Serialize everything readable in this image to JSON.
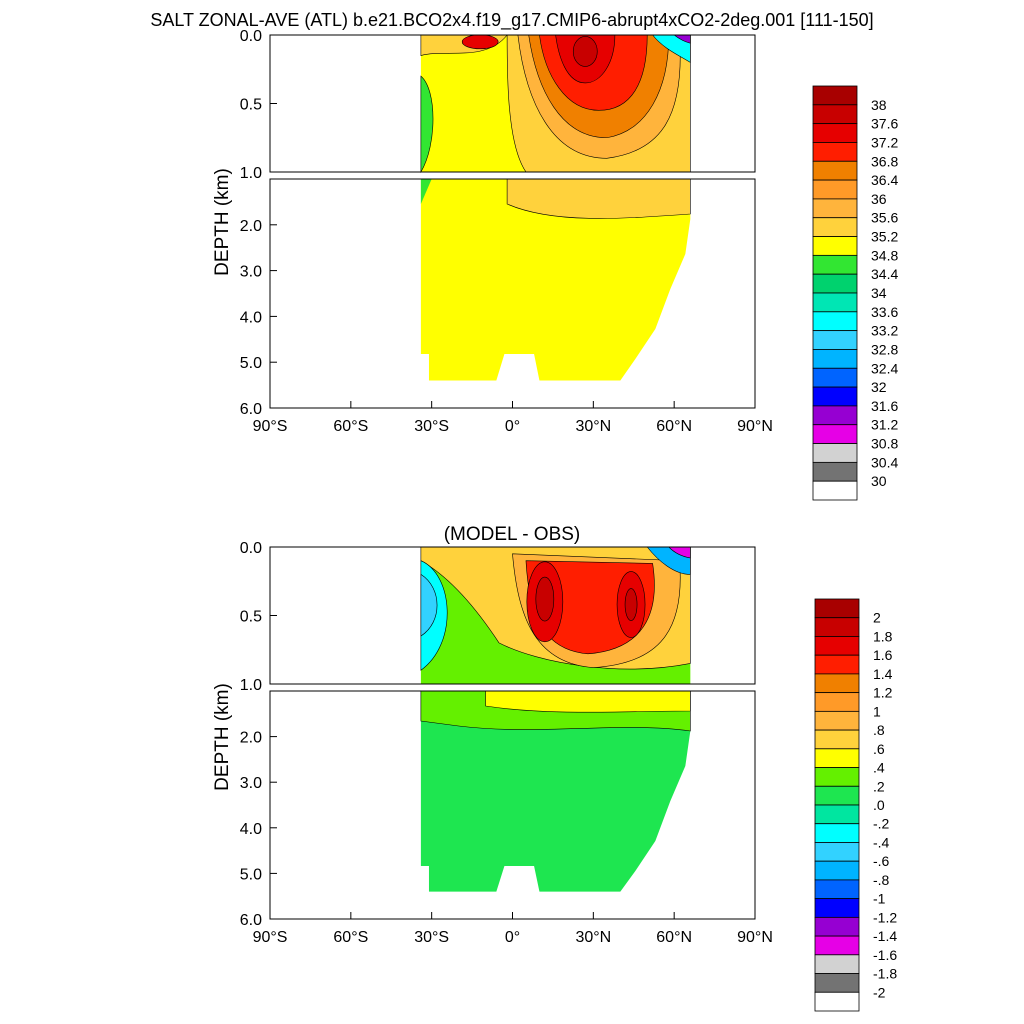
{
  "chart_data": [
    {
      "type": "heatmap",
      "title": "SALT ZONAL-AVE (ATL) b.e21.BCO2x4.f19_g17.CMIP6-abrupt4xCO2-2deg.001 [111-150]",
      "ylabel": "DEPTH (km)",
      "xlabel": "",
      "xlim": [
        -90,
        90
      ],
      "x_ticks": [
        -90,
        -60,
        -30,
        0,
        30,
        60,
        90
      ],
      "x_tick_labels": [
        "90°S",
        "60°S",
        "30°S",
        "0°",
        "30°N",
        "60°N",
        "90°N"
      ],
      "ylim_upper": [
        0.0,
        1.0
      ],
      "ylim_lower": [
        1.0,
        6.0
      ],
      "y_tick_labels_upper": [
        "0.0",
        "0.5",
        "1.0"
      ],
      "y_tick_labels_lower": [
        "2.0",
        "3.0",
        "4.0",
        "5.0",
        "6.0"
      ],
      "legend_position": "right",
      "colorbar_labels": [
        "38",
        "37.6",
        "37.2",
        "36.8",
        "36.4",
        "36",
        "35.6",
        "35.2",
        "34.8",
        "34.4",
        "34",
        "33.6",
        "33.2",
        "32.8",
        "32.4",
        "32",
        "31.6",
        "31.2",
        "30.8",
        "30.4",
        "30"
      ],
      "colorbar_colors": [
        "#a80000",
        "#c80000",
        "#e60000",
        "#ff1e00",
        "#f08000",
        "#ff9a28",
        "#ffb43c",
        "#ffd23c",
        "#ffff00",
        "#32e632",
        "#00d26e",
        "#00e6b4",
        "#00ffff",
        "#32d2ff",
        "#00b4ff",
        "#0064ff",
        "#0000ff",
        "#9600d2",
        "#e600e6",
        "#d2d2d2",
        "#737373",
        "#ffffff"
      ],
      "domain_extent": {
        "lat_min": -34,
        "lat_max": 66,
        "max_depth_km": 5.4
      },
      "field_level_bins": {
        "background_below_1km": 8,
        "north_band_below_1km": 7,
        "southern_fresh_lens": 9,
        "upper_warm_band": 7,
        "subtropical_core_outer": 6,
        "subtropical_core_mid": 4,
        "subtropical_core_inner": 3,
        "subtropical_core_center": 2,
        "subtropical_core_peak": 1,
        "equatorial_surface_max": 2,
        "arctic_fresh_outer": 12,
        "arctic_fresh_inner": 17
      }
    },
    {
      "type": "heatmap",
      "title": "(MODEL - OBS)",
      "ylabel": "DEPTH (km)",
      "xlabel": "",
      "xlim": [
        -90,
        90
      ],
      "x_ticks": [
        -90,
        -60,
        -30,
        0,
        30,
        60,
        90
      ],
      "x_tick_labels": [
        "90°S",
        "60°S",
        "30°S",
        "0°",
        "30°N",
        "60°N",
        "90°N"
      ],
      "ylim_upper": [
        0.0,
        1.0
      ],
      "ylim_lower": [
        1.0,
        6.0
      ],
      "y_tick_labels_upper": [
        "0.0",
        "0.5",
        "1.0"
      ],
      "y_tick_labels_lower": [
        "2.0",
        "3.0",
        "4.0",
        "5.0",
        "6.0"
      ],
      "legend_position": "right",
      "colorbar_labels": [
        "2",
        "1.8",
        "1.6",
        "1.4",
        "1.2",
        "1",
        ".8",
        ".6",
        ".4",
        ".2",
        ".0",
        "-.2",
        "-.4",
        "-.6",
        "-.8",
        "-1",
        "-1.2",
        "-1.4",
        "-1.6",
        "-1.8",
        "-2"
      ],
      "colorbar_colors": [
        "#a80000",
        "#c80000",
        "#e60000",
        "#ff1e00",
        "#f08000",
        "#ff9a28",
        "#ffb43c",
        "#ffd23c",
        "#ffff00",
        "#64f000",
        "#1ee650",
        "#00e6a0",
        "#00ffff",
        "#32d2ff",
        "#00b4ff",
        "#0064ff",
        "#0000ff",
        "#9600d2",
        "#e600e6",
        "#d2d2d2",
        "#737373",
        "#ffffff"
      ],
      "domain_extent": {
        "lat_min": -34,
        "lat_max": 66,
        "max_depth_km": 5.4
      },
      "field_level_bins": {
        "background_below_1km": 10,
        "transition_band": 9,
        "upper_positive_band": 8,
        "upper_positive_band_2": 7,
        "southern_negative_lens": 12,
        "southern_negative_core": 13,
        "subtropical_anomaly_outer": 6,
        "subtropical_anomaly_mid": 3,
        "subtropical_anomaly_inner": 2,
        "subtropical_anomaly_peak": 1,
        "arctic_negative_outer": 14,
        "arctic_negative_inner": 18
      }
    }
  ]
}
